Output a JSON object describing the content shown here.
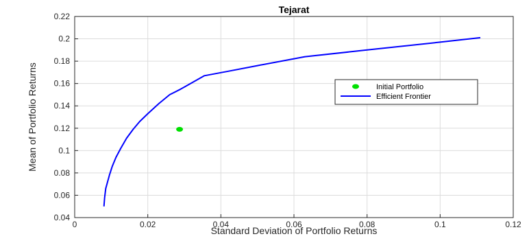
{
  "chart_data": {
    "type": "line",
    "title": "Tejarat",
    "xlabel": "Standard Deviation of Portfolio Returns",
    "ylabel": "Mean of Portfolio Returns",
    "xlim": [
      0,
      0.12
    ],
    "ylim": [
      0.04,
      0.22
    ],
    "xticks": [
      "0",
      "0.02",
      "0.04",
      "0.06",
      "0.08",
      "0.1",
      "0.12"
    ],
    "yticks": [
      "0.04",
      "0.06",
      "0.08",
      "0.1",
      "0.12",
      "0.14",
      "0.16",
      "0.18",
      "0.2",
      "0.22"
    ],
    "grid": true,
    "legend_position": "right",
    "series": [
      {
        "name": "Initial Portfolio",
        "kind": "scatter",
        "color": "#00e000",
        "points": [
          [
            0.0287,
            0.119
          ]
        ]
      },
      {
        "name": "Efficient Frontier",
        "kind": "line",
        "color": "#0000ff",
        "points": [
          [
            0.008,
            0.05
          ],
          [
            0.0082,
            0.058
          ],
          [
            0.0085,
            0.066
          ],
          [
            0.009,
            0.072
          ],
          [
            0.0095,
            0.078
          ],
          [
            0.0103,
            0.086
          ],
          [
            0.0113,
            0.094
          ],
          [
            0.0126,
            0.102
          ],
          [
            0.0142,
            0.111
          ],
          [
            0.016,
            0.119
          ],
          [
            0.0178,
            0.126
          ],
          [
            0.02,
            0.133
          ],
          [
            0.023,
            0.142
          ],
          [
            0.026,
            0.15
          ],
          [
            0.029,
            0.155
          ],
          [
            0.0355,
            0.167
          ],
          [
            0.042,
            0.171
          ],
          [
            0.05,
            0.176
          ],
          [
            0.063,
            0.184
          ],
          [
            0.08,
            0.19
          ],
          [
            0.1,
            0.197
          ],
          [
            0.111,
            0.201
          ]
        ]
      }
    ]
  }
}
